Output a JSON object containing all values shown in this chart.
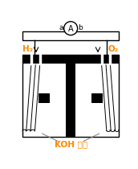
{
  "ammeter_label": "A",
  "left_label": "a",
  "right_label": "b",
  "gas_left": "H₂",
  "gas_right": "O₂",
  "solution_label": "KOH 溶液",
  "bg_color": "#ffffff",
  "black_color": "#000000",
  "orange_color": "#ff8800",
  "gray_color": "#888888"
}
